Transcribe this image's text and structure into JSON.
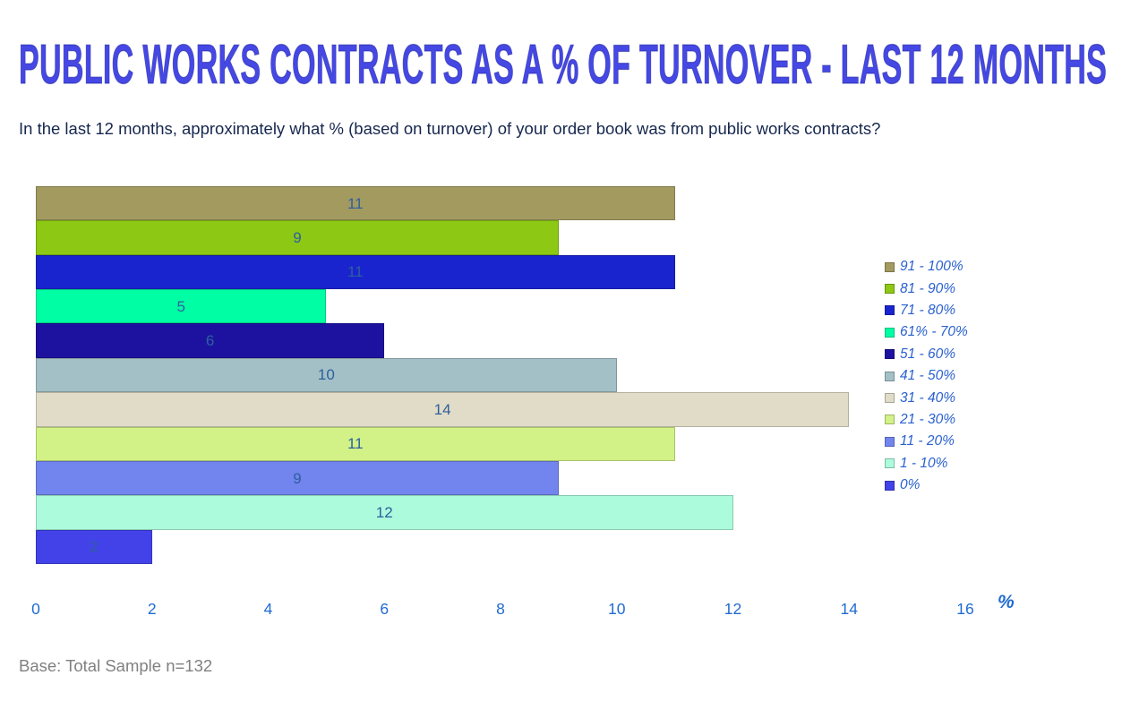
{
  "header": {
    "title": "PUBLIC WORKS CONTRACTS AS A % OF TURNOVER - LAST 12 MONTHS",
    "subtitle": "In the last 12 months, approximately what % (based on turnover) of your order book was from public works contracts?"
  },
  "chart_data": {
    "type": "bar",
    "orientation": "horizontal",
    "title": "Public works contracts as a % of turnover - last 12 months",
    "categories": [
      "91 - 100%",
      "81 - 90%",
      "71 - 80%",
      "61% - 70%",
      "51 - 60%",
      "41 - 50%",
      "31 - 40%",
      "21 - 30%",
      "11 - 20%",
      "1 - 10%",
      "0%"
    ],
    "values": [
      11,
      9,
      11,
      5,
      6,
      10,
      14,
      11,
      9,
      12,
      2
    ],
    "bar_colors": [
      "#A39A60",
      "#8CC814",
      "#1A24CE",
      "#00FFA5",
      "#1D12A0",
      "#A2C0C5",
      "#E0DCC7",
      "#D2F287",
      "#7284EE",
      "#ACFBDC",
      "#4242E8"
    ],
    "xlabel": "%",
    "ylabel": "",
    "xlim": [
      0,
      16
    ],
    "x_ticks": [
      0,
      2,
      4,
      6,
      8,
      10,
      12,
      14,
      16
    ],
    "grid": false,
    "legend_position": "right",
    "value_label_color": "#2E5F9E"
  },
  "footer": {
    "base_note": "Base: Total Sample n=132"
  },
  "colors": {
    "title": "#4548E3",
    "subtitle": "#16274E",
    "axis_text": "#1F6BD0",
    "legend_text": "#2B62CF",
    "note_text": "#808080"
  }
}
